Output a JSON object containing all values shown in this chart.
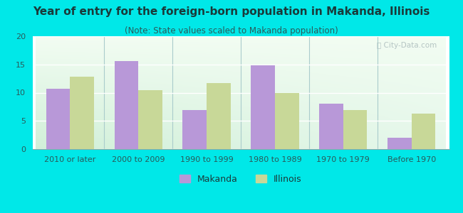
{
  "title": "Year of entry for the foreign-born population in Makanda, Illinois",
  "subtitle": "(Note: State values scaled to Makanda population)",
  "categories": [
    "2010 or later",
    "2000 to 2009",
    "1990 to 1999",
    "1980 to 1989",
    "1970 to 1979",
    "Before 1970"
  ],
  "makanda_values": [
    10.7,
    15.6,
    6.9,
    14.9,
    8.0,
    2.0
  ],
  "illinois_values": [
    12.8,
    10.5,
    11.7,
    9.9,
    6.9,
    6.3
  ],
  "makanda_color": "#b898d8",
  "illinois_color": "#c8d898",
  "background_outer": "#00e8e8",
  "ylim": [
    0,
    20
  ],
  "yticks": [
    0,
    5,
    10,
    15,
    20
  ],
  "bar_width": 0.35,
  "legend_labels": [
    "Makanda",
    "Illinois"
  ],
  "title_fontsize": 11,
  "subtitle_fontsize": 8.5,
  "tick_fontsize": 8,
  "legend_fontsize": 9,
  "title_color": "#1a3a3a",
  "subtitle_color": "#2a5a5a",
  "tick_color": "#2a5a5a"
}
